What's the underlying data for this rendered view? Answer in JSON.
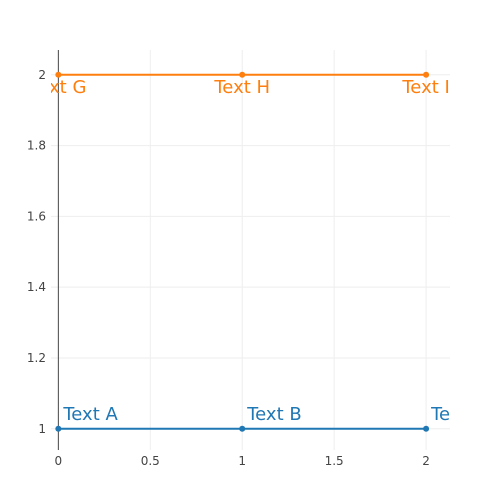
{
  "chart_data": {
    "type": "line",
    "title": "",
    "xlabel": "",
    "ylabel": "",
    "xlim": [
      -0.04,
      2.13
    ],
    "ylim": [
      0.94,
      2.07
    ],
    "x_ticks": [
      0,
      0.5,
      1,
      1.5,
      2
    ],
    "x_tick_labels": [
      "0",
      "0.5",
      "1",
      "1.5",
      "2"
    ],
    "y_ticks": [
      1,
      1.2,
      1.4,
      1.6,
      1.8,
      2
    ],
    "y_tick_labels": [
      "1",
      "1.2",
      "1.4",
      "1.6",
      "1.8",
      "2"
    ],
    "grid": true,
    "legend": "none",
    "series": [
      {
        "x": [
          0,
          1,
          2
        ],
        "y": [
          1,
          1,
          1
        ],
        "labels": [
          "Text A",
          "Text B",
          "Text C"
        ],
        "label_position": "top right",
        "color": "#1f77b4"
      },
      {
        "x": [
          0,
          1,
          2
        ],
        "y": [
          2,
          2,
          2
        ],
        "labels": [
          "Text G",
          "Text H",
          "Text I"
        ],
        "label_position": "bottom center",
        "color": "#ff7f0e"
      }
    ]
  }
}
